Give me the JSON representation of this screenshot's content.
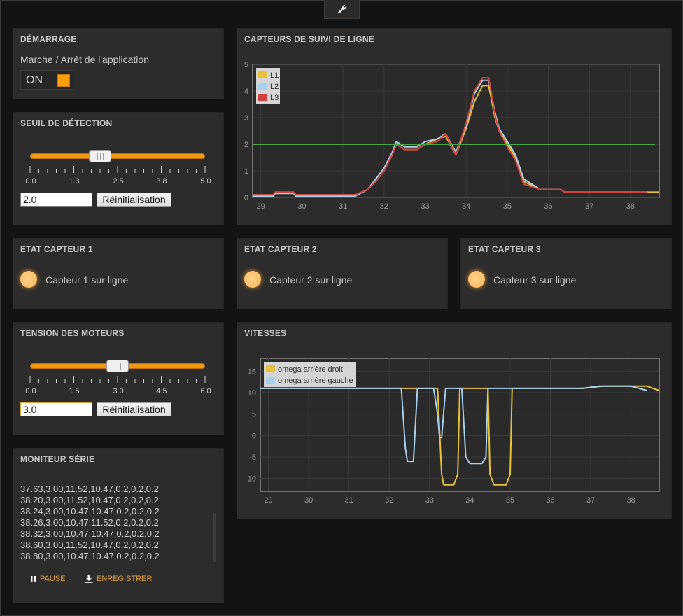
{
  "toolbar": {
    "tool_icon": "wrench-icon"
  },
  "startup": {
    "title": "DÉMARRAGE",
    "label": "Marche / Arrêt de l'application",
    "toggle_text": "ON",
    "toggle_color": "#ff9e0c"
  },
  "threshold": {
    "title": "SEUIL DE DÉTECTION",
    "value": "2.0",
    "min": 0,
    "max": 5,
    "ticks": [
      "0.0",
      "1.3",
      "2.5",
      "3.8",
      "5.0"
    ],
    "reset_label": "Réinitialisation"
  },
  "motors": {
    "title": "TENSION DES MOTEURS",
    "value": "3.0",
    "min": 0,
    "max": 6,
    "ticks": [
      "0.0",
      "1.5",
      "3.0",
      "4.5",
      "6.0"
    ],
    "reset_label": "Réinitialisation"
  },
  "sensors": [
    {
      "title": "ETAT CAPTEUR 1",
      "label": "Capteur 1 sur ligne"
    },
    {
      "title": "ETAT CAPTEUR 2",
      "label": "Capteur 2 sur ligne"
    },
    {
      "title": "ETAT CAPTEUR 3",
      "label": "Capteur 3 sur ligne"
    }
  ],
  "serial": {
    "title": "MONITEUR SÉRIE",
    "lines": [
      "37.63,3.00,11.52,10.47,0.2,0.2,0.2",
      "38.20,3.00,11.52,10.47,0.2,0.2,0.2",
      "38.24,3.00,10.47,10.47,0.2,0.2,0.2",
      "38.26,3.00,10.47,11.52,0.2,0.2,0.2",
      "38.32,3.00,10.47,10.47,0.2,0.2,0.2",
      "38.60,3.00,11.52,10.47,0.2,0.2,0.2",
      "38.80,3.00,10.47,10.47,0.2,0.2,0.2"
    ],
    "pause_label": "PAUSE",
    "save_label": "ENREGISTRER"
  },
  "chart_data": [
    {
      "id": "line_sensors",
      "title": "CAPTEURS DE SUIVI DE LIGNE",
      "type": "line",
      "xlim": [
        28.8,
        38.7
      ],
      "ylim": [
        0,
        5
      ],
      "xticks": [
        "29",
        "30",
        "31",
        "32",
        "33",
        "34",
        "35",
        "36",
        "37",
        "38"
      ],
      "yticks": [
        "0",
        "1",
        "2",
        "3",
        "4",
        "5"
      ],
      "grid": true,
      "legend_position": "top-left",
      "series": [
        {
          "name": "L1",
          "color": "#e8c13a",
          "x": [
            28.8,
            29.3,
            29.35,
            29.8,
            29.85,
            31.3,
            31.6,
            31.8,
            32.0,
            32.2,
            32.3,
            32.5,
            32.8,
            33.0,
            33.3,
            33.5,
            33.75,
            34.0,
            34.2,
            34.4,
            34.55,
            34.7,
            34.8,
            35.0,
            35.2,
            35.4,
            35.8,
            36.3,
            36.4,
            38.4,
            38.7
          ],
          "y": [
            0.1,
            0.1,
            0.2,
            0.2,
            0.1,
            0.1,
            0.3,
            0.6,
            1.0,
            1.6,
            2.0,
            1.8,
            1.8,
            2.0,
            2.2,
            2.3,
            1.6,
            2.6,
            3.6,
            4.2,
            4.2,
            3.0,
            2.5,
            2.0,
            1.5,
            0.6,
            0.3,
            0.3,
            0.2,
            0.2,
            0.2
          ]
        },
        {
          "name": "L2",
          "color": "#a8d0ec",
          "x": [
            28.8,
            29.3,
            29.35,
            29.8,
            29.85,
            31.3,
            31.6,
            31.8,
            32.0,
            32.2,
            32.3,
            32.5,
            32.8,
            33.0,
            33.3,
            33.5,
            33.75,
            34.0,
            34.2,
            34.4,
            34.55,
            34.7,
            34.8,
            35.0,
            35.2,
            35.4,
            35.8,
            36.3,
            36.4,
            38.4
          ],
          "y": [
            0.05,
            0.05,
            0.15,
            0.15,
            0.05,
            0.05,
            0.3,
            0.7,
            1.1,
            1.7,
            2.1,
            1.9,
            1.9,
            2.1,
            2.2,
            2.4,
            1.7,
            2.7,
            3.9,
            4.4,
            4.4,
            3.2,
            2.6,
            2.1,
            1.6,
            0.7,
            0.3,
            0.3,
            0.2,
            0.2
          ]
        },
        {
          "name": "L3",
          "color": "#d04040",
          "x": [
            28.8,
            29.3,
            29.35,
            29.8,
            29.85,
            31.3,
            31.6,
            31.8,
            32.0,
            32.2,
            32.3,
            32.5,
            32.8,
            33.0,
            33.3,
            33.5,
            33.75,
            34.0,
            34.2,
            34.4,
            34.55,
            34.7,
            34.8,
            35.0,
            35.2,
            35.4,
            35.8,
            36.3,
            36.4,
            38.4
          ],
          "y": [
            0.1,
            0.1,
            0.2,
            0.2,
            0.1,
            0.1,
            0.3,
            0.6,
            1.0,
            1.6,
            2.0,
            1.8,
            1.8,
            2.0,
            2.1,
            2.4,
            1.6,
            2.8,
            4.0,
            4.5,
            4.5,
            3.1,
            2.5,
            1.9,
            1.4,
            0.5,
            0.3,
            0.3,
            0.2,
            0.2
          ]
        },
        {
          "name": "",
          "color": "#4aa84a",
          "x": [
            28.8,
            38.6
          ],
          "y": [
            2.0,
            2.0
          ]
        }
      ]
    },
    {
      "id": "line_speeds",
      "title": "VITESSES",
      "type": "line",
      "xlim": [
        28.8,
        38.7
      ],
      "ylim": [
        -13,
        18
      ],
      "xticks": [
        "29",
        "30",
        "31",
        "32",
        "33",
        "34",
        "35",
        "36",
        "37",
        "38"
      ],
      "yticks": [
        "15",
        "10",
        "5",
        "0",
        "-5",
        "-10"
      ],
      "grid": true,
      "legend_position": "top-left",
      "series": [
        {
          "name": "omega arrière droit",
          "color": "#e8c13a",
          "x": [
            28.8,
            33.2,
            33.3,
            33.35,
            33.6,
            33.7,
            33.75,
            34.45,
            34.5,
            34.6,
            34.9,
            35.0,
            35.05,
            36.5,
            36.8,
            37.3,
            38.0,
            38.4,
            38.7
          ],
          "y": [
            11,
            11,
            -9,
            -11.5,
            -11.5,
            -9,
            11,
            11,
            -9,
            -11.5,
            -11.5,
            -9,
            11,
            11,
            11,
            11.5,
            11.5,
            11.5,
            10.5
          ]
        },
        {
          "name": "omega arrière gauche",
          "color": "#a8d0ec",
          "x": [
            28.8,
            32.3,
            32.4,
            32.45,
            32.6,
            32.7,
            33.1,
            33.2,
            33.25,
            33.3,
            33.4,
            33.8,
            33.9,
            34.0,
            34.3,
            34.4,
            34.45,
            36.6,
            36.8,
            37.2,
            38.0,
            38.4
          ],
          "y": [
            11,
            11,
            -3,
            -6,
            -6,
            11,
            11,
            5,
            -0.5,
            -0.5,
            11,
            11,
            -5,
            -6.5,
            -6.5,
            -5,
            11,
            11,
            11,
            11.5,
            11.5,
            10.5
          ]
        }
      ]
    }
  ]
}
